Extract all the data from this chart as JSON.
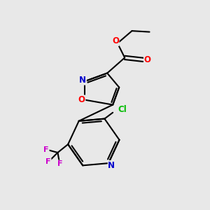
{
  "background_color": "#e8e8e8",
  "bond_color": "#000000",
  "bond_width": 1.5,
  "atom_colors": {
    "O": "#ff0000",
    "N": "#0000cc",
    "Cl": "#00bb00",
    "F": "#cc00cc"
  },
  "font_size": 8.5,
  "fig_width": 3.0,
  "fig_height": 3.0
}
